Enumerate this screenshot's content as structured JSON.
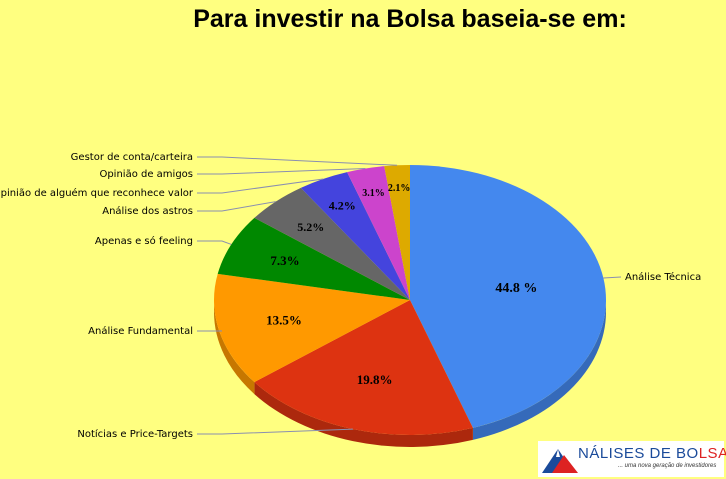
{
  "chart_data": {
    "type": "pie",
    "title": "Para investir na Bolsa baseia-se em:",
    "slices": [
      {
        "label": "Análise Técnica",
        "value": 44.8,
        "value_label": "44.8 %",
        "color": "#4488ee"
      },
      {
        "label": "Notícias e Price-Targets",
        "value": 19.8,
        "value_label": "19.8%",
        "color": "#dd3311"
      },
      {
        "label": "Análise Fundamental",
        "value": 13.5,
        "value_label": "13.5%",
        "color": "#ff9900"
      },
      {
        "label": "Apenas e só feeling",
        "value": 7.3,
        "value_label": "7.3%",
        "color": "#008800"
      },
      {
        "label": "Análise dos astros",
        "value": 5.2,
        "value_label": "5.2%",
        "color": "#666666"
      },
      {
        "label": "Opinião de alguém que reconhece valor",
        "value": 4.2,
        "value_label": "4.2%",
        "color": "#4444dd"
      },
      {
        "label": "Opinião de amigos",
        "value": 3.1,
        "value_label": "3.1%",
        "color": "#cc44cc"
      },
      {
        "label": "Gestor de conta/carteira",
        "value": 2.1,
        "value_label": "2.1%",
        "color": "#ddaa00"
      }
    ]
  },
  "logo": {
    "name_prefix": "NÁLISES DE BO",
    "name_suffix": "LSA",
    "tagline": "... uma nova geração de investidores"
  }
}
